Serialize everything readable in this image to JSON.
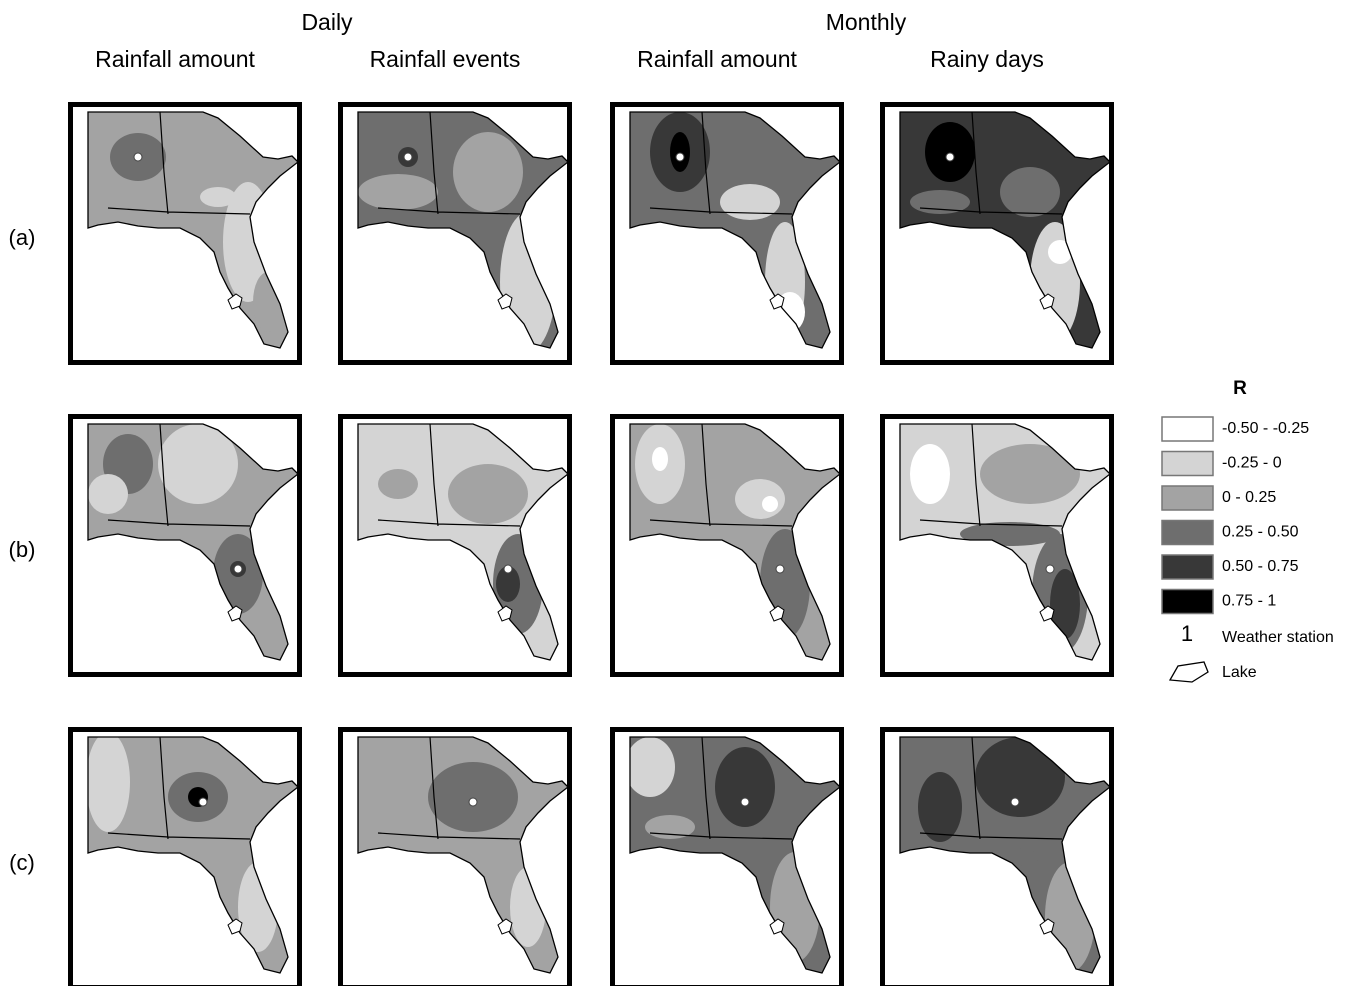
{
  "columns": {
    "groups": [
      "Daily",
      "Monthly"
    ],
    "headers": [
      "Rainfall amount",
      "Rainfall events",
      "Rainfall amount",
      "Rainy days"
    ]
  },
  "rows": [
    "(a)",
    "(b)",
    "(c)"
  ],
  "legend": {
    "title": "R",
    "classes": [
      {
        "label": "-0.50 - -0.25",
        "color": "#ffffff"
      },
      {
        "label": "-0.25 - 0",
        "color": "#d4d4d4"
      },
      {
        "label": "0 - 0.25",
        "color": "#a3a3a3"
      },
      {
        "label": "0.25 - 0.50",
        "color": "#6e6e6e"
      },
      {
        "label": "0.50 - 0.75",
        "color": "#383838"
      },
      {
        "label": "0.75 - 1",
        "color": "#000000"
      }
    ],
    "station": {
      "symbol": "1",
      "label": "Weather station"
    },
    "lake": {
      "label": "Lake"
    }
  }
}
